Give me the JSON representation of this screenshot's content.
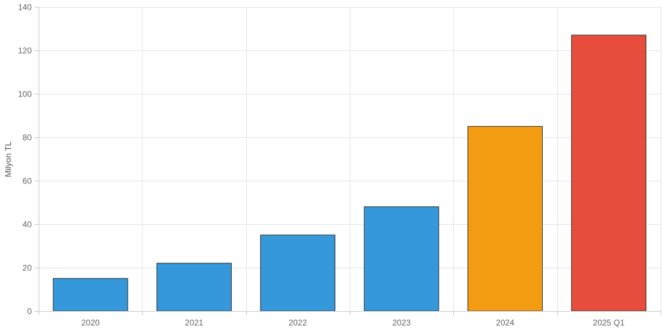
{
  "chart_data": {
    "type": "bar",
    "categories": [
      "2020",
      "2021",
      "2022",
      "2023",
      "2024",
      "2025 Q1"
    ],
    "values": [
      15,
      22,
      35,
      48,
      85,
      127
    ],
    "bar_colors": [
      "#3498db",
      "#3498db",
      "#3498db",
      "#3498db",
      "#f39c12",
      "#e74c3c"
    ],
    "bar_border_color": "#333333",
    "ylabel": "Milyon TL",
    "xlabel": "",
    "ylim": [
      0,
      140
    ],
    "yticks": [
      0,
      20,
      40,
      60,
      80,
      100,
      120,
      140
    ],
    "grid": true,
    "grid_color": "#e5e5e5",
    "legend": "none"
  }
}
